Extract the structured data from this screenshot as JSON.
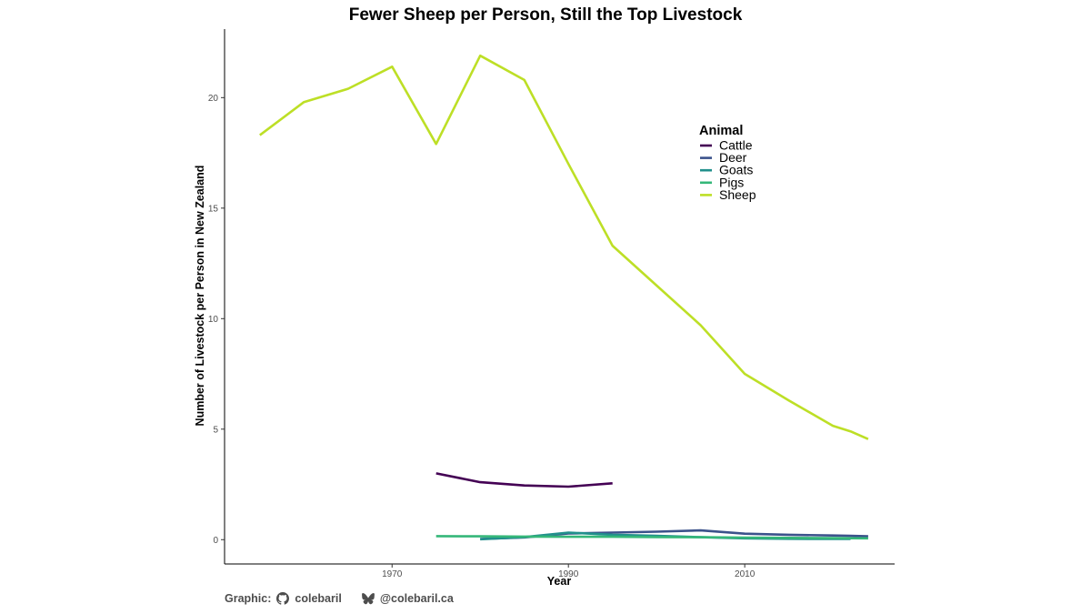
{
  "chart_data": {
    "type": "line",
    "title": "Fewer Sheep per Person, Still the Top Livestock",
    "xlabel": "Year",
    "ylabel": "Number of Livestock per Person in New Zealand",
    "xlim": [
      1951,
      2027
    ],
    "ylim": [
      -1.1,
      23.1
    ],
    "xticks": [
      1970,
      1990,
      2010
    ],
    "yticks": [
      0,
      5,
      10,
      15,
      20
    ],
    "grid": false,
    "legend": {
      "title": "Animal",
      "position": "top-right-inside"
    },
    "series": [
      {
        "name": "Cattle",
        "color": "#440154",
        "x": [
          1975,
          1980,
          1985,
          1990,
          1995
        ],
        "y": [
          3.0,
          2.6,
          2.45,
          2.4,
          2.55
        ]
      },
      {
        "name": "Deer",
        "color": "#3b528b",
        "x": [
          1980,
          1985,
          1990,
          1995,
          2000,
          2005,
          2010,
          2015,
          2020,
          2022,
          2024
        ],
        "y": [
          0.03,
          0.1,
          0.28,
          0.32,
          0.36,
          0.42,
          0.27,
          0.22,
          0.19,
          0.17,
          0.15
        ]
      },
      {
        "name": "Goats",
        "color": "#21908c",
        "x": [
          1980,
          1985,
          1990,
          1995,
          2000,
          2005,
          2010,
          2015,
          2020,
          2022
        ],
        "y": [
          0.02,
          0.12,
          0.32,
          0.22,
          0.17,
          0.11,
          0.06,
          0.04,
          0.03,
          0.03
        ]
      },
      {
        "name": "Pigs",
        "color": "#35b779",
        "x": [
          1975,
          1980,
          1985,
          1990,
          1995,
          2000,
          2005,
          2010,
          2015,
          2020,
          2024
        ],
        "y": [
          0.16,
          0.15,
          0.14,
          0.13,
          0.13,
          0.12,
          0.11,
          0.09,
          0.08,
          0.07,
          0.06
        ]
      },
      {
        "name": "Sheep",
        "color": "#bddf26",
        "x": [
          1955,
          1960,
          1965,
          1970,
          1975,
          1980,
          1985,
          1990,
          1995,
          2000,
          2005,
          2010,
          2015,
          2020,
          2022,
          2024
        ],
        "y": [
          18.3,
          19.8,
          20.4,
          21.4,
          17.9,
          21.9,
          20.8,
          17.0,
          13.3,
          11.5,
          9.7,
          7.5,
          6.3,
          5.15,
          4.9,
          4.55
        ]
      }
    ]
  },
  "caption": {
    "label": "Graphic:",
    "github_icon": "github-icon",
    "github_handle": "colebaril",
    "bluesky_icon": "bluesky-butterfly-icon",
    "bluesky_handle": "@colebaril.ca"
  }
}
